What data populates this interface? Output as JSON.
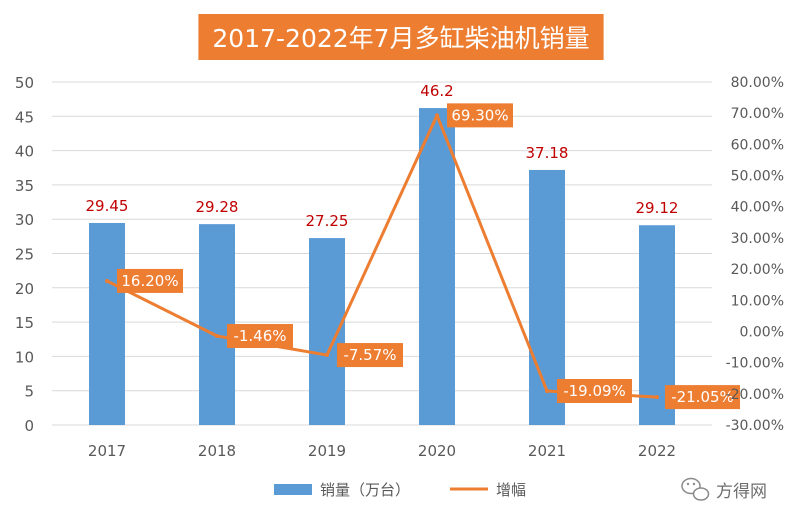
{
  "title": "2017-2022年7月多缸柴油机销量",
  "watermark": "方得网",
  "chart_data": {
    "type": "bar",
    "title": "2017-2022年7月多缸柴油机销量",
    "categories": [
      "2017",
      "2018",
      "2019",
      "2020",
      "2021",
      "2022"
    ],
    "series": [
      {
        "name": "销量（万台）",
        "kind": "bar",
        "axis": "left",
        "values": [
          29.45,
          29.28,
          27.25,
          46.2,
          37.18,
          29.12
        ],
        "labels": [
          "29.45",
          "29.28",
          "27.25",
          "46.2",
          "37.18",
          "29.12"
        ],
        "color": "#5b9bd5",
        "label_color": "#c00000"
      },
      {
        "name": "增幅",
        "kind": "line",
        "axis": "right",
        "values": [
          16.2,
          -1.46,
          -7.57,
          69.3,
          -19.09,
          -21.05
        ],
        "labels": [
          "16.20%",
          "-1.46%",
          "-7.57%",
          "69.30%",
          "-19.09%",
          "-21.05%"
        ],
        "color": "#ed7d31",
        "label_color": "#ffffff"
      }
    ],
    "y_left": {
      "lim": [
        0,
        50
      ],
      "ticks": [
        "0",
        "5",
        "10",
        "15",
        "20",
        "25",
        "30",
        "35",
        "40",
        "45",
        "50"
      ]
    },
    "y_right": {
      "lim": [
        -30,
        80
      ],
      "ticks": [
        "-30.00%",
        "-20.00%",
        "-10.00%",
        "0.00%",
        "10.00%",
        "20.00%",
        "30.00%",
        "40.00%",
        "50.00%",
        "60.00%",
        "70.00%",
        "80.00%"
      ]
    },
    "grid": true,
    "legend_position": "bottom"
  },
  "colors": {
    "title_bg": "#ed7d31",
    "title_text": "#ffffff",
    "grid": "#d9d9d9",
    "axis_text": "#595959"
  }
}
